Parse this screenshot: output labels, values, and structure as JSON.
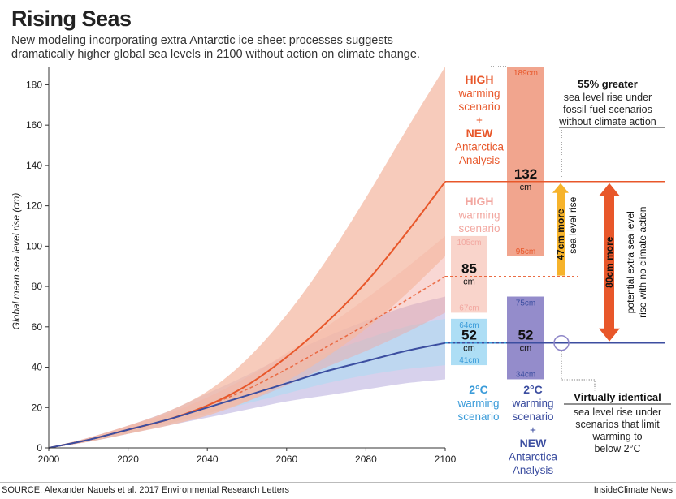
{
  "header": {
    "title": "Rising Seas",
    "subtitle_line1": "New modeling incorporating extra Antarctic ice sheet processes suggests",
    "subtitle_line2": "dramatically higher global sea levels in 2100 without action on climate change."
  },
  "footer": {
    "source": "SOURCE: Alexander Nauels et al. 2017 Environmental Research Letters",
    "credit": "InsideClimate News"
  },
  "colors": {
    "high_new": "#e8572a",
    "high_new_band": "#f4b9a4",
    "high_new_bar": "#f0a088",
    "high": "#f2a7a0",
    "high_bar": "#f8cfc5",
    "low": "#3a9bd9",
    "low_bar": "#a9dcf4",
    "low_new": "#3c4ea0",
    "low_new_bar": "#8e86c8",
    "low_band": "#c9c2e6",
    "arrow_yellow": "#f6b32b"
  },
  "chart_data": {
    "type": "line",
    "ylabel": "Global mean sea level rise (cm)",
    "xlabel": "",
    "xlim": [
      2000,
      2100
    ],
    "ylim": [
      0,
      185
    ],
    "xticks": [
      2000,
      2020,
      2040,
      2060,
      2080,
      2100
    ],
    "yticks": [
      0,
      20,
      40,
      60,
      80,
      100,
      120,
      140,
      160,
      180
    ],
    "grid": false,
    "x": [
      2000,
      2010,
      2020,
      2030,
      2040,
      2050,
      2060,
      2070,
      2080,
      2090,
      2100
    ],
    "series": [
      {
        "key": "high_new",
        "style": "solid",
        "values": [
          0,
          4,
          9,
          14,
          21,
          31,
          45,
          62,
          82,
          106,
          132
        ],
        "lower": [
          0,
          3,
          7,
          11,
          16,
          23,
          33,
          45,
          59,
          76,
          95
        ],
        "upper": [
          0,
          5,
          11,
          18,
          28,
          44,
          66,
          93,
          124,
          157,
          189
        ]
      },
      {
        "key": "high",
        "style": "dashed",
        "values": [
          0,
          4,
          9,
          14,
          21,
          29,
          39,
          50,
          61,
          73,
          85
        ],
        "lower": [
          0,
          3,
          7,
          12,
          17,
          23,
          31,
          40,
          48,
          57,
          67
        ],
        "upper": [
          0,
          5,
          11,
          17,
          25,
          35,
          47,
          60,
          74,
          89,
          105
        ]
      },
      {
        "key": "low_new",
        "style": "solid",
        "values": [
          0,
          4,
          9,
          14,
          20,
          26,
          32,
          38,
          43,
          48,
          52
        ],
        "lower": [
          0,
          3,
          7,
          11,
          15,
          19,
          23,
          26,
          29,
          32,
          34
        ],
        "upper": [
          0,
          5,
          11,
          18,
          27,
          36,
          46,
          55,
          63,
          70,
          75
        ]
      },
      {
        "key": "low",
        "style": "dashed",
        "values": [
          0,
          4,
          9,
          14,
          20,
          26,
          32,
          38,
          43,
          48,
          52
        ],
        "lower": [
          0,
          3,
          7,
          12,
          17,
          22,
          27,
          32,
          36,
          39,
          41
        ],
        "upper": [
          0,
          4,
          9,
          16,
          23,
          31,
          39,
          47,
          54,
          60,
          64
        ]
      }
    ],
    "bars_2100": [
      {
        "key": "high_new",
        "low": 95,
        "mid": 132,
        "high": 189,
        "low_label": "95cm",
        "mid_label": "132",
        "unit": "cm",
        "high_label": "189cm"
      },
      {
        "key": "high",
        "low": 67,
        "mid": 85,
        "high": 105,
        "low_label": "67cm",
        "mid_label": "85",
        "unit": "cm",
        "high_label": "105cm"
      },
      {
        "key": "low",
        "low": 41,
        "mid": 52,
        "high": 64,
        "low_label": "41cm",
        "mid_label": "52",
        "unit": "cm",
        "high_label": "64cm"
      },
      {
        "key": "low_new",
        "low": 34,
        "mid": 52,
        "high": 75,
        "low_label": "34cm",
        "mid_label": "52",
        "unit": "cm",
        "high_label": "75cm"
      }
    ],
    "scenario_labels": {
      "high_new": [
        "HIGH",
        "warming",
        "scenario",
        "+",
        "NEW",
        "Antarctica",
        "Analysis"
      ],
      "high": [
        "HIGH",
        "warming",
        "scenario"
      ],
      "low": [
        "2°C",
        "warming",
        "scenario"
      ],
      "low_new": [
        "2°C",
        "warming",
        "scenario",
        "+",
        "NEW",
        "Antarctica",
        "Analysis"
      ]
    },
    "annotations": {
      "greater_title": "55% greater",
      "greater_lines": [
        "sea level rise under",
        "fossil-fuel scenarios",
        "without climate action"
      ],
      "more47_bold": "47cm more",
      "more47_rest": "sea level rise",
      "more80_bold": "80cm more",
      "more80_line2": "potential extra sea level",
      "more80_line3": "rise with no climate action",
      "identical_title": "Virtually identical",
      "identical_lines": [
        "sea level rise under",
        "scenarios that limit",
        "warming to",
        "below 2°C"
      ]
    }
  }
}
